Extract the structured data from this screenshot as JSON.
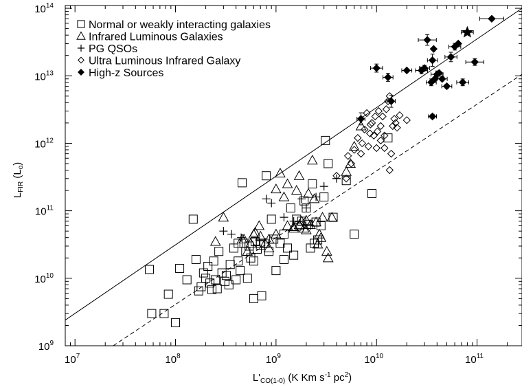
{
  "chart_data": {
    "type": "scatter",
    "title": "",
    "xlabel": "L'CO(1-0) (K Km s-1 pc2)",
    "ylabel": "LFIR (Lo)",
    "xscale": "log",
    "yscale": "log",
    "xlim": [
      8000000,
      280000000000
    ],
    "ylim": [
      1000000000,
      110000000000000
    ],
    "x_ticks": [
      {
        "value": 10000000,
        "base": "10",
        "exp": "7"
      },
      {
        "value": 100000000,
        "base": "10",
        "exp": "8"
      },
      {
        "value": 1000000000,
        "base": "10",
        "exp": "9"
      },
      {
        "value": 10000000000,
        "base": "10",
        "exp": "10"
      },
      {
        "value": 100000000000,
        "base": "10",
        "exp": "11"
      }
    ],
    "y_ticks": [
      {
        "value": 1000000000,
        "base": "10",
        "exp": "9"
      },
      {
        "value": 10000000000,
        "base": "10",
        "exp": "10"
      },
      {
        "value": 100000000000,
        "base": "10",
        "exp": "11"
      },
      {
        "value": 1000000000000,
        "base": "10",
        "exp": "12"
      },
      {
        "value": 10000000000000,
        "base": "10",
        "exp": "13"
      },
      {
        "value": 100000000000000,
        "base": "10",
        "exp": "14"
      }
    ],
    "legend_position": "top-left",
    "lines": [
      {
        "style": "solid",
        "x": [
          8000000,
          280000000000
        ],
        "y": [
          2400000000,
          100000000000000
        ]
      },
      {
        "style": "dashed",
        "x": [
          24000000,
          280000000000
        ],
        "y": [
          1000000000,
          10500000000000
        ]
      }
    ],
    "series": [
      {
        "name": "Normal or weakly interacting galaxies",
        "marker": "square",
        "points": [
          [
            55000000,
            13500000000
          ],
          [
            58000000,
            3000000000
          ],
          [
            77000000,
            3000000000
          ],
          [
            85000000,
            5800000000
          ],
          [
            100000000,
            2200000000
          ],
          [
            110000000,
            14000000000
          ],
          [
            130000000,
            9500000000
          ],
          [
            150000000,
            75000000000
          ],
          [
            160000000,
            19000000000
          ],
          [
            170000000,
            6500000000
          ],
          [
            180000000,
            7500000000
          ],
          [
            190000000,
            12000000000
          ],
          [
            200000000,
            10000000000
          ],
          [
            210000000,
            15000000000
          ],
          [
            220000000,
            8500000000
          ],
          [
            230000000,
            6800000000
          ],
          [
            240000000,
            18000000000
          ],
          [
            250000000,
            9500000000
          ],
          [
            260000000,
            7000000000
          ],
          [
            270000000,
            25000000000
          ],
          [
            290000000,
            12000000000
          ],
          [
            310000000,
            9000000000
          ],
          [
            320000000,
            11000000000
          ],
          [
            340000000,
            8000000000
          ],
          [
            350000000,
            16000000000
          ],
          [
            380000000,
            28000000000
          ],
          [
            400000000,
            9500000000
          ],
          [
            420000000,
            18000000000
          ],
          [
            440000000,
            13000000000
          ],
          [
            460000000,
            260000000000
          ],
          [
            480000000,
            33000000000
          ],
          [
            500000000,
            25000000000
          ],
          [
            520000000,
            10000000000
          ],
          [
            540000000,
            30000000000
          ],
          [
            560000000,
            20000000000
          ],
          [
            600000000,
            5000000000
          ],
          [
            620000000,
            35000000000
          ],
          [
            650000000,
            27000000000
          ],
          [
            700000000,
            31000000000
          ],
          [
            720000000,
            5500000000
          ],
          [
            760000000,
            33000000000
          ],
          [
            800000000,
            330000000000
          ],
          [
            850000000,
            25000000000
          ],
          [
            900000000,
            75000000000
          ],
          [
            950000000,
            38000000000
          ],
          [
            1000000000,
            13000000000
          ],
          [
            1100000000,
            33000000000
          ],
          [
            1200000000,
            45000000000
          ],
          [
            1300000000,
            28000000000
          ],
          [
            1400000000,
            110000000000
          ],
          [
            1500000000,
            22000000000
          ],
          [
            1600000000,
            75000000000
          ],
          [
            1700000000,
            60000000000
          ],
          [
            1800000000,
            70000000000
          ],
          [
            1900000000,
            140000000000
          ],
          [
            2000000000,
            110000000000
          ],
          [
            2100000000,
            63000000000
          ],
          [
            2300000000,
            250000000000
          ],
          [
            2400000000,
            33000000000
          ],
          [
            2600000000,
            37000000000
          ],
          [
            2800000000,
            60000000000
          ],
          [
            3000000000,
            160000000000
          ],
          [
            3100000000,
            1100000000000
          ],
          [
            3300000000,
            500000000000
          ],
          [
            3700000000,
            80000000000
          ],
          [
            5000000000,
            280000000000
          ],
          [
            6000000000,
            45000000000
          ],
          [
            9000000000,
            180000000000
          ],
          [
            13000000000,
            1200000000000
          ],
          [
            700000000,
            33000000000
          ],
          [
            600000000,
            18000000000
          ],
          [
            1200000000,
            19000000000
          ],
          [
            2200000000,
            28000000000
          ],
          [
            2500000000,
            68000000000
          ],
          [
            420000000,
            33000000000
          ]
        ]
      },
      {
        "name": "Infrared Luminous Galaxies",
        "marker": "triangle",
        "points": [
          [
            250000000,
            35000000000
          ],
          [
            300000000,
            80000000000
          ],
          [
            460000000,
            38000000000
          ],
          [
            520000000,
            25000000000
          ],
          [
            560000000,
            33000000000
          ],
          [
            620000000,
            48000000000
          ],
          [
            680000000,
            60000000000
          ],
          [
            700000000,
            42000000000
          ],
          [
            780000000,
            33000000000
          ],
          [
            850000000,
            38000000000
          ],
          [
            1000000000,
            45000000000
          ],
          [
            1300000000,
            60000000000
          ],
          [
            1500000000,
            55000000000
          ],
          [
            1700000000,
            62000000000
          ],
          [
            1900000000,
            55000000000
          ],
          [
            2000000000,
            72000000000
          ],
          [
            2100000000,
            180000000000
          ],
          [
            2200000000,
            62000000000
          ],
          [
            2500000000,
            68000000000
          ],
          [
            2700000000,
            45000000000
          ],
          [
            2900000000,
            80000000000
          ],
          [
            3200000000,
            25000000000
          ],
          [
            3300000000,
            20000000000
          ],
          [
            3600000000,
            80000000000
          ],
          [
            5000000000,
            380000000000
          ],
          [
            5500000000,
            500000000000
          ],
          [
            6000000000,
            900000000000
          ],
          [
            7000000000,
            1800000000000
          ],
          [
            2300000000,
            560000000000
          ],
          [
            1700000000,
            330000000000
          ],
          [
            1200000000,
            160000000000
          ],
          [
            1000000000,
            210000000000
          ],
          [
            1300000000,
            250000000000
          ],
          [
            1600000000,
            200000000000
          ],
          [
            1800000000,
            70000000000
          ],
          [
            2400000000,
            150000000000
          ],
          [
            2600000000,
            32000000000
          ],
          [
            2800000000,
            40000000000
          ],
          [
            600000000,
            45000000000
          ],
          [
            850000000,
            28000000000
          ],
          [
            480000000,
            38000000000
          ],
          [
            1100000000,
            360000000000
          ],
          [
            1500000000,
            58000000000
          ],
          [
            2000000000,
            52000000000
          ]
        ]
      },
      {
        "name": "PG QSOs",
        "marker": "plus",
        "points": [
          [
            300000000,
            50000000000
          ],
          [
            360000000,
            45000000000
          ],
          [
            450000000,
            40000000000
          ],
          [
            900000000,
            130000000000
          ],
          [
            1200000000,
            80000000000
          ],
          [
            1500000000,
            70000000000
          ],
          [
            1800000000,
            150000000000
          ],
          [
            2000000000,
            110000000000
          ],
          [
            2500000000,
            160000000000
          ],
          [
            3000000000,
            230000000000
          ],
          [
            4000000000,
            300000000000
          ],
          [
            2200000000,
            60000000000
          ],
          [
            800000000,
            150000000000
          ]
        ]
      },
      {
        "name": "Ultra Luminous Infrared Galaxy",
        "marker": "diamond",
        "points": [
          [
            4000000000,
            330000000000
          ],
          [
            5000000000,
            300000000000
          ],
          [
            5200000000,
            650000000000
          ],
          [
            5600000000,
            500000000000
          ],
          [
            6000000000,
            800000000000
          ],
          [
            6500000000,
            1200000000000
          ],
          [
            7000000000,
            700000000000
          ],
          [
            7200000000,
            1000000000000
          ],
          [
            7600000000,
            1600000000000
          ],
          [
            8000000000,
            2800000000000
          ],
          [
            8300000000,
            900000000000
          ],
          [
            8700000000,
            1900000000000
          ],
          [
            9000000000,
            2000000000000
          ],
          [
            9400000000,
            1300000000000
          ],
          [
            9700000000,
            2500000000000
          ],
          [
            10000000000,
            850000000000
          ],
          [
            10200000000,
            1500000000000
          ],
          [
            10500000000,
            3000000000000
          ],
          [
            11000000000,
            1800000000000
          ],
          [
            11500000000,
            2500000000000
          ],
          [
            12000000000,
            1300000000000
          ],
          [
            12500000000,
            3200000000000
          ],
          [
            13000000000,
            4200000000000
          ],
          [
            13500000000,
            5000000000000
          ],
          [
            14000000000,
            700000000000
          ],
          [
            14500000000,
            1800000000000
          ],
          [
            15000000000,
            2300000000000
          ],
          [
            15500000000,
            2000000000000
          ],
          [
            17000000000,
            2600000000000
          ],
          [
            13500000000,
            400000000000
          ],
          [
            20000000000,
            2200000000000
          ],
          [
            11000000000,
            1100000000000
          ],
          [
            8600000000,
            1400000000000
          ],
          [
            16000000000,
            1700000000000
          ],
          [
            12000000000,
            850000000000
          ]
        ]
      },
      {
        "name": "High-z Sources",
        "marker": "filled-diamond",
        "points": [
          [
            7000000000,
            2300000000000
          ],
          [
            10000000000,
            13000000000000
          ],
          [
            13000000000,
            9500000000000
          ],
          [
            14000000000,
            4200000000000
          ],
          [
            20000000000,
            12000000000000
          ],
          [
            28000000000,
            12000000000000
          ],
          [
            30000000000,
            13000000000000
          ],
          [
            32000000000,
            34000000000000
          ],
          [
            35000000000,
            8000000000000
          ],
          [
            36000000000,
            17000000000000
          ],
          [
            36000000000,
            2500000000000
          ],
          [
            38000000000,
            9000000000000
          ],
          [
            40000000000,
            10500000000000
          ],
          [
            42000000000,
            11000000000000
          ],
          [
            45000000000,
            9000000000000
          ],
          [
            50000000000,
            7000000000000
          ],
          [
            55000000000,
            19000000000000
          ],
          [
            60000000000,
            27000000000000
          ],
          [
            65000000000,
            30000000000000
          ],
          [
            72000000000,
            8000000000000
          ],
          [
            95000000000,
            16000000000000
          ],
          [
            140000000000,
            70000000000000
          ],
          [
            37000000000,
            25000000000000
          ]
        ]
      },
      {
        "name": "",
        "marker": "star",
        "points": [
          [
            80000000000,
            44000000000000
          ]
        ]
      }
    ],
    "error_bars": [
      {
        "x": [
          7000000000,
          2300000000000
        ],
        "xerr": 0.04,
        "yerr": 0.09
      },
      {
        "x": [
          10000000000,
          13000000000000
        ],
        "xerr": 0.06,
        "yerr": 0.06
      },
      {
        "x": [
          13000000000,
          9500000000000
        ],
        "xerr": 0.05,
        "yerr": 0.06
      },
      {
        "x": [
          14000000000,
          4200000000000
        ],
        "xerr": 0.04,
        "yerr": 0.09
      },
      {
        "x": [
          20000000000,
          12000000000000
        ],
        "xerr": 0.05,
        "yerr": 0.02
      },
      {
        "x": [
          28000000000,
          12000000000000
        ],
        "xerr": 0.06,
        "yerr": 0.05
      },
      {
        "x": [
          30000000000,
          13000000000000
        ],
        "xerr": 0.05,
        "yerr": 0.04
      },
      {
        "x": [
          32000000000,
          34000000000000
        ],
        "xerr": 0.09,
        "yerr": 0.08
      },
      {
        "x": [
          35000000000,
          8000000000000
        ],
        "xerr": 0.05,
        "yerr": 0.05
      },
      {
        "x": [
          36000000000,
          17000000000000
        ],
        "xerr": 0.05,
        "yerr": 0.09
      },
      {
        "x": [
          36000000000,
          2500000000000
        ],
        "xerr": 0.04,
        "yerr": 0.03
      },
      {
        "x": [
          40000000000,
          10500000000000
        ],
        "xerr": 0.06,
        "yerr": 0.05
      },
      {
        "x": [
          45000000000,
          9000000000000
        ],
        "xerr": 0.05,
        "yerr": 0.03
      },
      {
        "x": [
          50000000000,
          7000000000000
        ],
        "xerr": 0.05,
        "yerr": 0.03
      },
      {
        "x": [
          55000000000,
          19000000000000
        ],
        "xerr": 0.06,
        "yerr": 0.07
      },
      {
        "x": [
          60000000000,
          27000000000000
        ],
        "xerr": 0.06,
        "yerr": 0.05
      },
      {
        "x": [
          72000000000,
          8000000000000
        ],
        "xerr": 0.06,
        "yerr": 0.05
      },
      {
        "x": [
          95000000000,
          16000000000000
        ],
        "xerr": 0.09,
        "yerr": 0.05
      },
      {
        "x": [
          140000000000,
          70000000000000
        ],
        "xerr": 0.12,
        "yerr": 0.02
      },
      {
        "x": [
          80000000000,
          44000000000000
        ],
        "xerr": 0.06,
        "yerr": 0.02
      }
    ]
  }
}
